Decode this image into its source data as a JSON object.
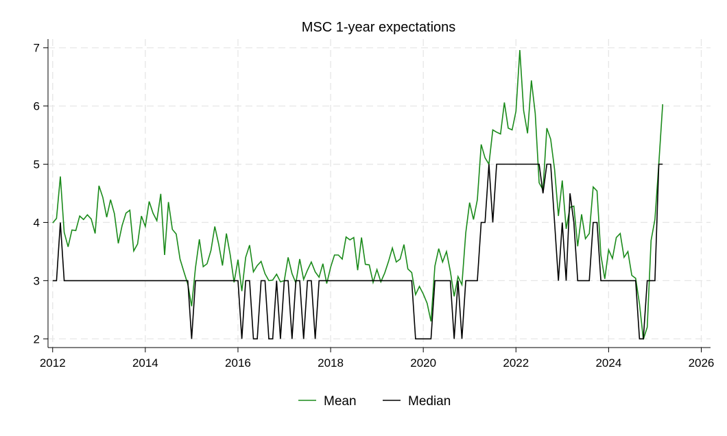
{
  "chart_data": {
    "type": "line",
    "title": "MSC 1-year expectations",
    "xlabel": "",
    "ylabel": "",
    "xlim": [
      2011.9,
      2026.2
    ],
    "ylim": [
      1.85,
      7.15
    ],
    "x_ticks": [
      2012,
      2014,
      2016,
      2018,
      2020,
      2022,
      2024,
      2026
    ],
    "x_tick_labels": [
      "2012",
      "2014",
      "2016",
      "2018",
      "2020",
      "2022",
      "2024",
      "2026"
    ],
    "y_ticks": [
      2,
      3,
      4,
      5,
      6,
      7
    ],
    "y_tick_labels": [
      "2",
      "3",
      "4",
      "5",
      "6",
      "7"
    ],
    "grid": true,
    "legend_position": "bottom",
    "series": [
      {
        "name": "Mean",
        "color": "#1a8a1a",
        "start": [
          2012,
          1
        ],
        "values": [
          3.99,
          4.07,
          4.79,
          3.83,
          3.58,
          3.87,
          3.86,
          4.11,
          4.05,
          4.13,
          4.06,
          3.81,
          4.63,
          4.43,
          4.09,
          4.39,
          4.15,
          3.64,
          3.95,
          4.16,
          4.21,
          3.51,
          3.63,
          4.11,
          3.93,
          4.36,
          4.16,
          4.03,
          4.49,
          3.44,
          4.35,
          3.88,
          3.8,
          3.37,
          3.15,
          2.94,
          2.56,
          3.22,
          3.71,
          3.24,
          3.29,
          3.52,
          3.93,
          3.63,
          3.26,
          3.81,
          3.44,
          2.97,
          3.36,
          2.82,
          3.4,
          3.61,
          3.15,
          3.26,
          3.33,
          3.12,
          3.0,
          3.01,
          3.11,
          2.98,
          3.0,
          3.4,
          3.12,
          2.96,
          3.37,
          3.02,
          3.18,
          3.32,
          3.15,
          3.06,
          3.29,
          2.95,
          3.23,
          3.44,
          3.44,
          3.37,
          3.75,
          3.7,
          3.74,
          3.18,
          3.74,
          3.28,
          3.27,
          2.97,
          3.19,
          2.98,
          3.13,
          3.33,
          3.56,
          3.32,
          3.37,
          3.62,
          3.2,
          3.14,
          2.76,
          2.9,
          2.77,
          2.61,
          2.3,
          3.25,
          3.55,
          3.32,
          3.5,
          3.16,
          2.73,
          3.07,
          2.93,
          3.82,
          4.34,
          4.05,
          4.39,
          5.34,
          5.11,
          5.0,
          5.59,
          5.55,
          5.52,
          6.06,
          5.62,
          5.59,
          5.91,
          6.96,
          5.92,
          5.53,
          6.44,
          5.87,
          4.68,
          4.56,
          5.62,
          5.43,
          4.91,
          4.11,
          4.72,
          3.89,
          4.26,
          4.28,
          3.59,
          4.14,
          3.72,
          3.81,
          4.61,
          4.54,
          3.44,
          3.03,
          3.53,
          3.38,
          3.74,
          3.81,
          3.4,
          3.5,
          3.09,
          3.04,
          2.6,
          1.99,
          2.2,
          3.69,
          4.05,
          5.01,
          6.03
        ]
      },
      {
        "name": "Median",
        "color": "#000000",
        "start": [
          2012,
          1
        ],
        "values": [
          3,
          3,
          4,
          3,
          3,
          3,
          3,
          3,
          3,
          3,
          3,
          3,
          3,
          3,
          3,
          3,
          3,
          3,
          3,
          3,
          3,
          3,
          3,
          3,
          3,
          3,
          3,
          3,
          3,
          3,
          3,
          3,
          3,
          3,
          3,
          3,
          2,
          3,
          3,
          3,
          3,
          3,
          3,
          3,
          3,
          3,
          3,
          3,
          3,
          2,
          3,
          3,
          2,
          2,
          3,
          3,
          2,
          2,
          3,
          2,
          3,
          3,
          2,
          3,
          3,
          2,
          3,
          3,
          2,
          3,
          3,
          3,
          3,
          3,
          3,
          3,
          3,
          3,
          3,
          3,
          3,
          3,
          3,
          3,
          3,
          3,
          3,
          3,
          3,
          3,
          3,
          3,
          3,
          3,
          2,
          2,
          2,
          2,
          2,
          3,
          3,
          3,
          3,
          3,
          2,
          3,
          2,
          3,
          3,
          3,
          3,
          4,
          4,
          5,
          4,
          5,
          5,
          5,
          5,
          5,
          5,
          5,
          5,
          5,
          5,
          5,
          5,
          4.5,
          5,
          5,
          4,
          3,
          4,
          3,
          4.5,
          4,
          3,
          3,
          3,
          3,
          4,
          4,
          3,
          3,
          3,
          3,
          3,
          3,
          3,
          3,
          3,
          3,
          2,
          2,
          3,
          3,
          3,
          5,
          5
        ]
      }
    ]
  }
}
